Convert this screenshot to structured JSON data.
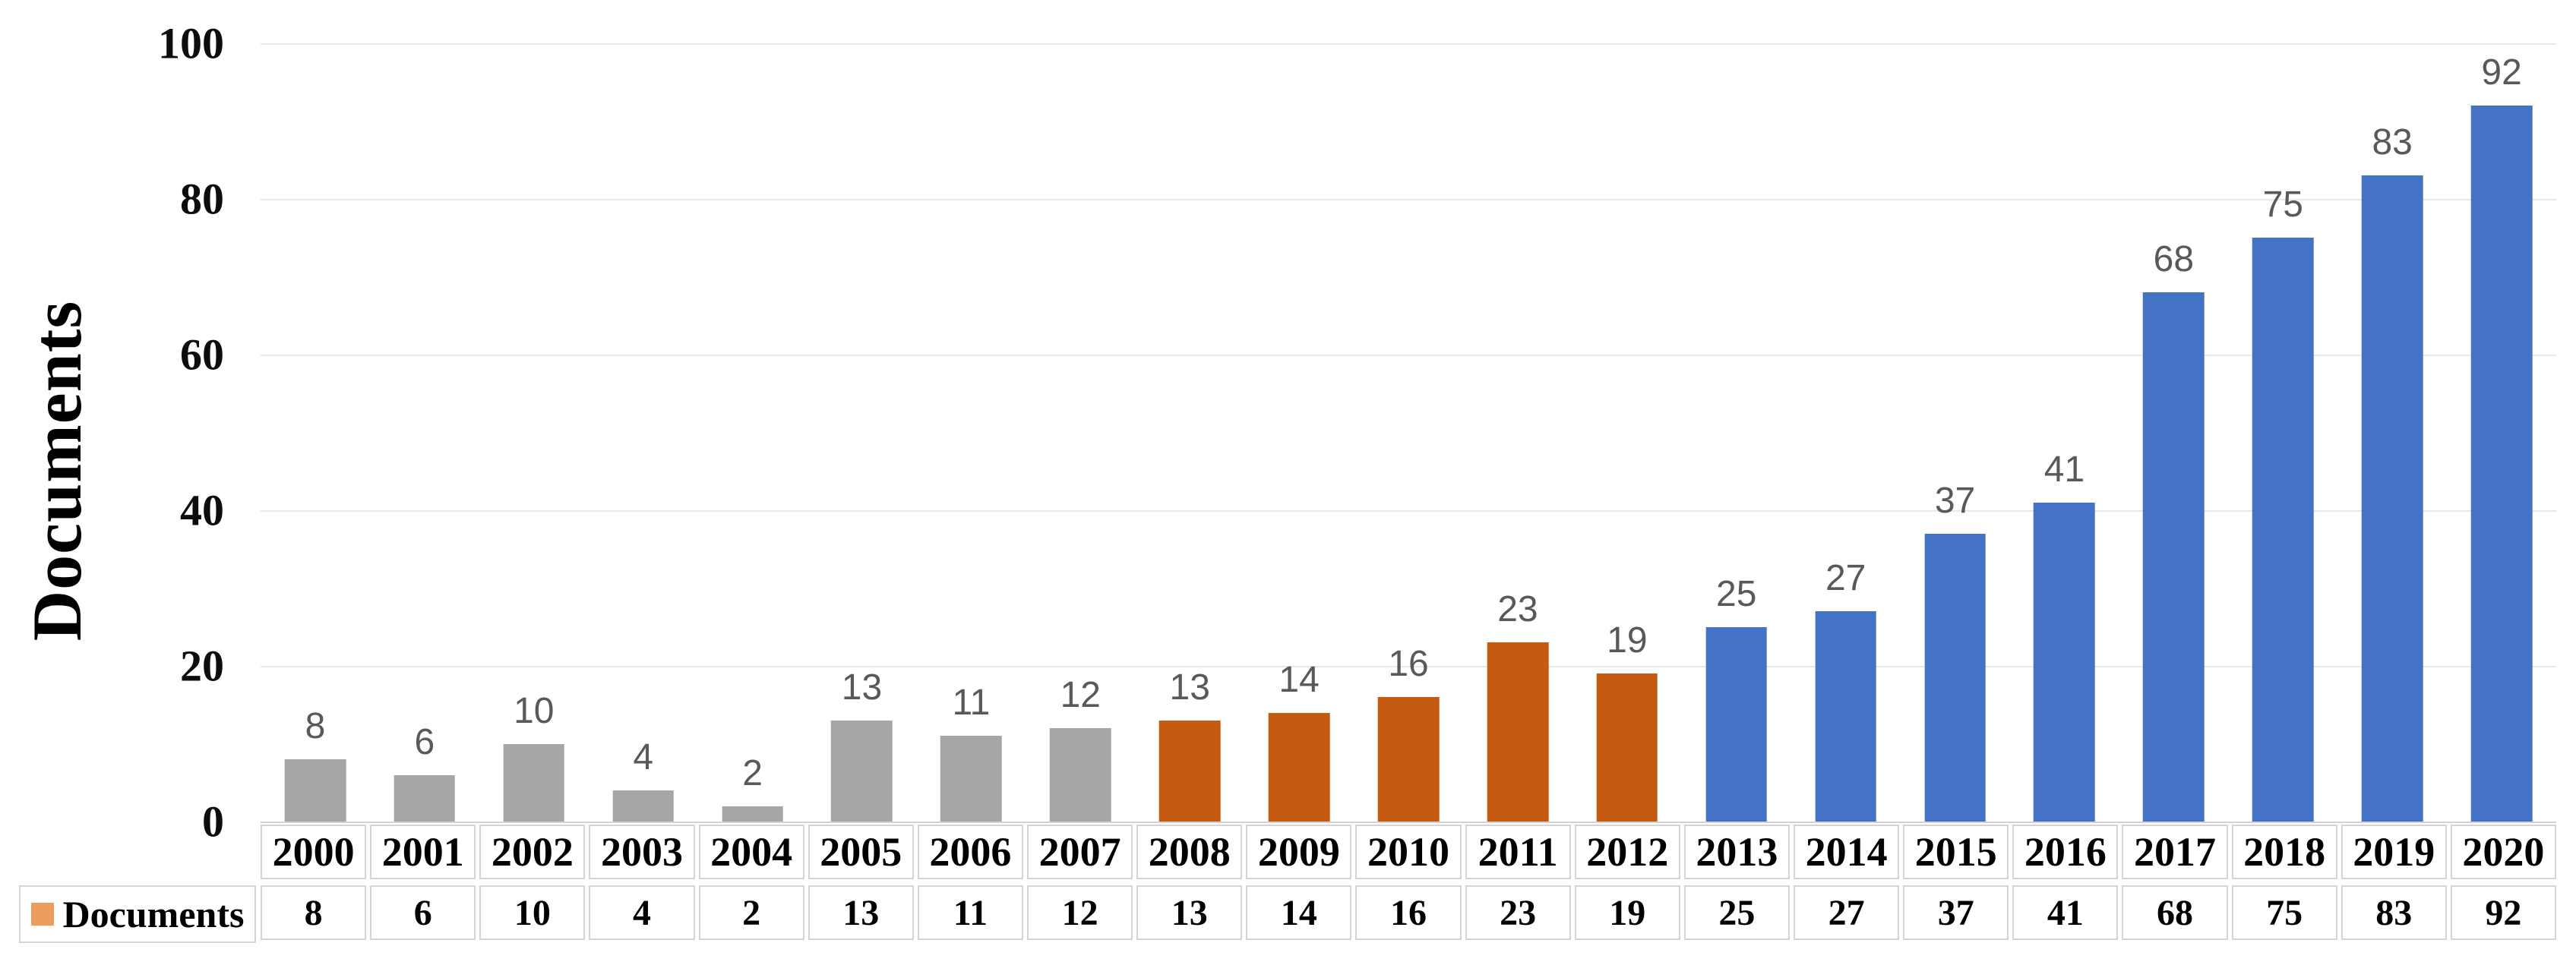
{
  "chart_data": {
    "type": "bar",
    "title": "",
    "xlabel": "",
    "ylabel": "Documents",
    "categories": [
      "2000",
      "2001",
      "2002",
      "2003",
      "2004",
      "2005",
      "2006",
      "2007",
      "2008",
      "2009",
      "2010",
      "2011",
      "2012",
      "2013",
      "2014",
      "2015",
      "2016",
      "2017",
      "2018",
      "2019",
      "2020"
    ],
    "values": [
      8,
      6,
      10,
      4,
      2,
      13,
      11,
      12,
      13,
      14,
      16,
      23,
      19,
      25,
      27,
      37,
      41,
      68,
      75,
      83,
      92
    ],
    "bar_colors": [
      "#A6A6A6",
      "#A6A6A6",
      "#A6A6A6",
      "#A6A6A6",
      "#A6A6A6",
      "#A6A6A6",
      "#A6A6A6",
      "#A6A6A6",
      "#C55A11",
      "#C55A11",
      "#C55A11",
      "#C55A11",
      "#C55A11",
      "#4472C4",
      "#4472C4",
      "#4472C4",
      "#4472C4",
      "#4472C4",
      "#4472C4",
      "#4472C4",
      "#4472C4"
    ],
    "data_labels": [
      8,
      6,
      10,
      4,
      2,
      13,
      11,
      12,
      13,
      14,
      16,
      23,
      19,
      25,
      27,
      37,
      41,
      68,
      75,
      83,
      92
    ],
    "ylim": [
      0,
      100
    ],
    "yticks": [
      0,
      20,
      40,
      60,
      80,
      100
    ],
    "grid": true,
    "legend_position": "table-left",
    "table": {
      "header_row": [
        "2000",
        "2001",
        "2002",
        "2003",
        "2004",
        "2005",
        "2006",
        "2007",
        "2008",
        "2009",
        "2010",
        "2011",
        "2012",
        "2013",
        "2014",
        "2015",
        "2016",
        "2017",
        "2018",
        "2019",
        "2020"
      ],
      "series_row_label": "Documents",
      "series_row_values": [
        8,
        6,
        10,
        4,
        2,
        13,
        11,
        12,
        13,
        14,
        16,
        23,
        19,
        25,
        27,
        37,
        41,
        68,
        75,
        83,
        92
      ]
    }
  },
  "legend": {
    "label": "Documents",
    "key_color": "#ED9C5E"
  },
  "colors": {
    "bar_gray": "#A6A6A6",
    "bar_orange": "#C55A11",
    "bar_blue": "#4472C4",
    "data_label": "#595959",
    "gridline": "#E9E9E9",
    "axis_line": "#D2D2D2",
    "table_border": "#D4D4D4",
    "text": "#000000"
  }
}
